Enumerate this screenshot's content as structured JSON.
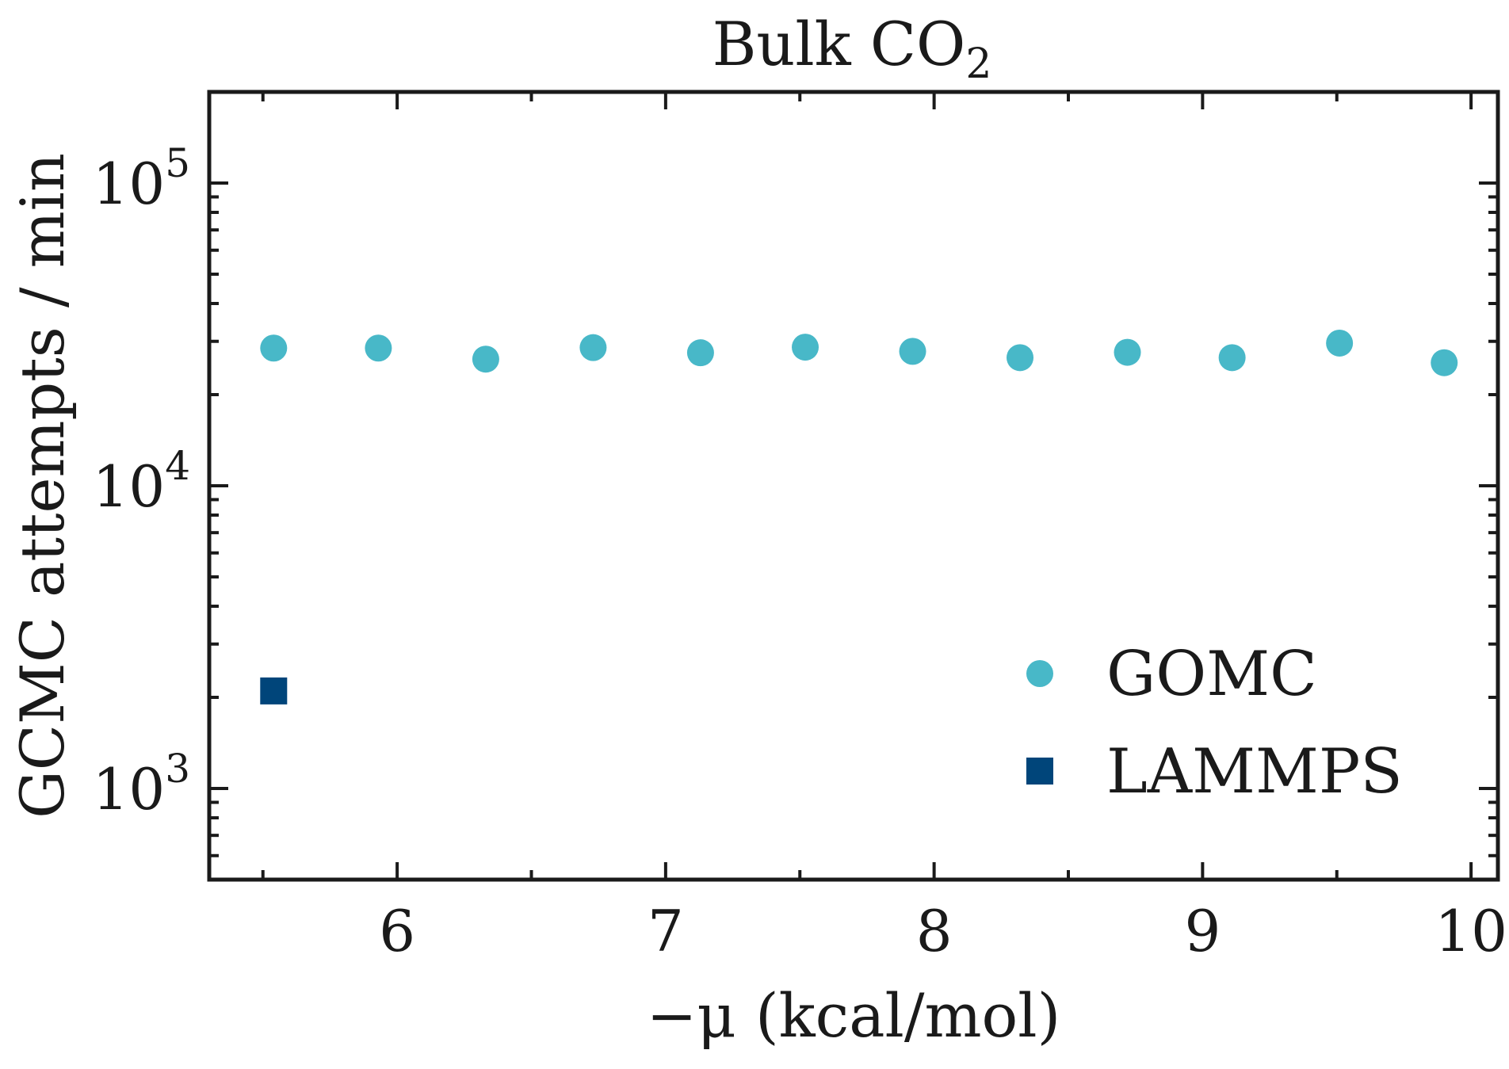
{
  "chart_data": {
    "type": "scatter",
    "title": "Bulk CO",
    "title_subscript": "2",
    "xlabel": "−μ (kcal/mol)",
    "ylabel": "GCMC attempts / min",
    "xlim": [
      5.3,
      10.1
    ],
    "ylim": [
      500,
      200000
    ],
    "yscale": "log",
    "x_ticks": [
      "6",
      "7",
      "8",
      "9",
      "10"
    ],
    "y_ticks": [
      {
        "value": 1000,
        "base": "10",
        "exp": "3"
      },
      {
        "value": 10000,
        "base": "10",
        "exp": "4"
      },
      {
        "value": 100000,
        "base": "10",
        "exp": "5"
      }
    ],
    "grid": false,
    "legend_position": "lower-right",
    "series": [
      {
        "name": "GOMC",
        "marker": "circle",
        "color": "#48b8c8",
        "x": [
          5.54,
          5.93,
          6.33,
          6.73,
          7.13,
          7.52,
          7.92,
          8.32,
          8.72,
          9.11,
          9.51,
          9.9
        ],
        "y": [
          28500,
          28500,
          26200,
          28600,
          27500,
          28700,
          27800,
          26500,
          27600,
          26500,
          29600,
          25500
        ]
      },
      {
        "name": "LAMMPS",
        "marker": "square",
        "color": "#00457a",
        "x": [
          5.54
        ],
        "y": [
          2100
        ]
      }
    ]
  }
}
